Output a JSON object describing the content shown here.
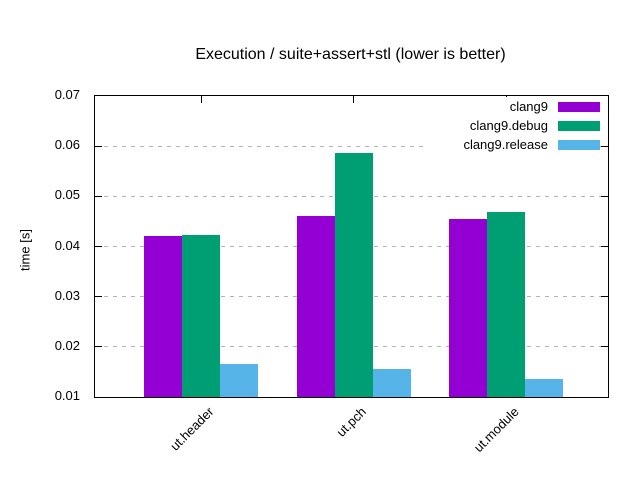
{
  "chart_data": {
    "type": "bar",
    "title": "Execution / suite+assert+stl (lower is better)",
    "xlabel": "",
    "ylabel": "time [s]",
    "categories": [
      "ut.header",
      "ut.pch",
      "ut.module"
    ],
    "series": [
      {
        "name": "clang9",
        "color": "#9400D3",
        "values": [
          0.042,
          0.046,
          0.0455
        ]
      },
      {
        "name": "clang9.debug",
        "color": "#009E73",
        "values": [
          0.0422,
          0.0586,
          0.0468
        ]
      },
      {
        "name": "clang9.release",
        "color": "#56B4E9",
        "values": [
          0.0165,
          0.0155,
          0.0135
        ]
      }
    ],
    "ylim": [
      0.01,
      0.07
    ],
    "yticks": [
      0.01,
      0.02,
      0.03,
      0.04,
      0.05,
      0.06,
      0.07
    ],
    "ytick_format_decimals": 2,
    "grid": "horizontal dashed",
    "legend_position": "top-right inside, opaque"
  },
  "colors": {
    "background": "#ffffff",
    "frame": "#000000",
    "gridline": "#b3b3b3"
  }
}
